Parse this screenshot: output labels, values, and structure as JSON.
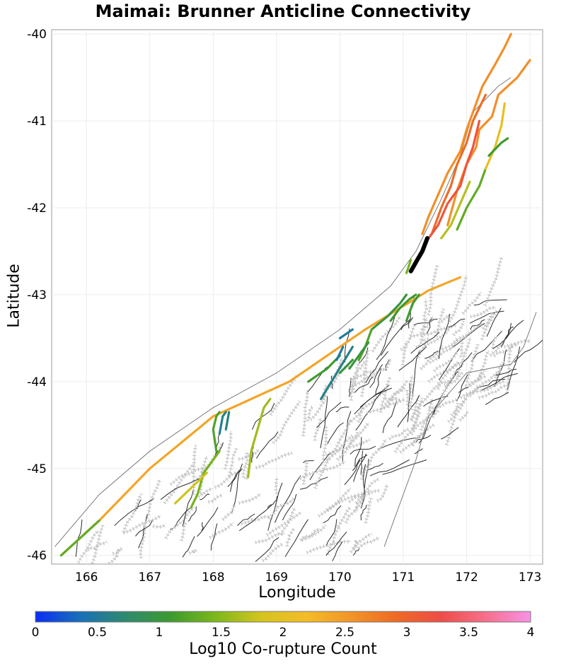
{
  "title": "Maimai: Brunner Anticline Connectivity",
  "x_axis": {
    "label": "Longitude",
    "ticks": [
      "166",
      "167",
      "168",
      "169",
      "170",
      "171",
      "172",
      "173"
    ]
  },
  "y_axis": {
    "label": "Latitude",
    "ticks": [
      "-40",
      "-41",
      "-42",
      "-43",
      "-44",
      "-45",
      "-46"
    ]
  },
  "colorbar": {
    "label": "Log10 Co-rupture Count",
    "ticks": [
      "0",
      "0.5",
      "1",
      "1.5",
      "2",
      "2.5",
      "3",
      "3.5",
      "4"
    ],
    "colors": [
      "#0a2ef5",
      "#1870b8",
      "#2e8a6e",
      "#3d9a2f",
      "#7cb81a",
      "#d4c41f",
      "#f5bc26",
      "#f29528",
      "#ef6a24",
      "#ee4d47",
      "#f76f8a",
      "#f992e9"
    ]
  },
  "chart_data": {
    "type": "map",
    "x_range": [
      165.45,
      173.2
    ],
    "y_range": [
      -46.1,
      -39.95
    ],
    "colormap_range": [
      0,
      4
    ],
    "highlighted_section": {
      "name": "Brunner Anticline",
      "color": "#000000",
      "path": [
        [
          171.12,
          -42.73
        ],
        [
          171.22,
          -42.6
        ],
        [
          171.3,
          -42.5
        ],
        [
          171.38,
          -42.35
        ]
      ]
    },
    "co_rupture_traces": [
      {
        "v": 2.4,
        "path": [
          [
            165.6,
            -46.0
          ],
          [
            166.2,
            -45.6
          ],
          [
            167.0,
            -45.0
          ],
          [
            168.0,
            -44.4
          ],
          [
            169.2,
            -44.0
          ],
          [
            170.4,
            -43.4
          ],
          [
            171.4,
            -42.95
          ],
          [
            171.9,
            -42.8
          ]
        ]
      },
      {
        "v": 1.3,
        "path": [
          [
            165.6,
            -46.0
          ],
          [
            166.2,
            -45.6
          ]
        ]
      },
      {
        "v": 2.6,
        "path": [
          [
            171.7,
            -42.2
          ],
          [
            171.85,
            -41.8
          ],
          [
            172.0,
            -41.5
          ],
          [
            172.15,
            -41.3
          ],
          [
            172.2,
            -41.1
          ],
          [
            172.4,
            -40.95
          ],
          [
            172.5,
            -40.7
          ],
          [
            172.8,
            -40.5
          ],
          [
            173.0,
            -40.3
          ]
        ]
      },
      {
        "v": 2.6,
        "path": [
          [
            171.3,
            -42.3
          ],
          [
            171.4,
            -42.1
          ],
          [
            171.55,
            -41.85
          ],
          [
            171.7,
            -41.6
          ],
          [
            171.9,
            -41.35
          ],
          [
            172.0,
            -41.1
          ],
          [
            172.25,
            -40.6
          ],
          [
            172.45,
            -40.35
          ],
          [
            172.6,
            -40.15
          ],
          [
            172.7,
            -40.0
          ]
        ]
      },
      {
        "v": 2.9,
        "path": [
          [
            171.45,
            -42.3
          ],
          [
            171.6,
            -42.0
          ],
          [
            171.75,
            -41.75
          ],
          [
            171.85,
            -41.5
          ],
          [
            172.0,
            -41.25
          ],
          [
            172.1,
            -41.0
          ],
          [
            172.3,
            -40.7
          ]
        ]
      },
      {
        "v": 3.2,
        "path": [
          [
            171.4,
            -42.35
          ],
          [
            171.55,
            -42.2
          ],
          [
            171.7,
            -41.95
          ],
          [
            171.9,
            -41.75
          ],
          [
            172.0,
            -41.5
          ],
          [
            172.1,
            -41.3
          ],
          [
            172.2,
            -41.0
          ]
        ]
      },
      {
        "v": 1.7,
        "path": [
          [
            171.6,
            -42.35
          ],
          [
            171.75,
            -42.2
          ],
          [
            171.9,
            -41.95
          ],
          [
            172.05,
            -41.7
          ]
        ]
      },
      {
        "v": 1.3,
        "path": [
          [
            171.85,
            -42.25
          ],
          [
            172.0,
            -42.0
          ],
          [
            172.2,
            -41.75
          ],
          [
            172.3,
            -41.55
          ]
        ]
      },
      {
        "v": 2.0,
        "path": [
          [
            172.3,
            -41.55
          ],
          [
            172.45,
            -41.3
          ],
          [
            172.55,
            -41.05
          ],
          [
            172.6,
            -40.8
          ]
        ]
      },
      {
        "v": 1.1,
        "path": [
          [
            172.35,
            -41.4
          ],
          [
            172.55,
            -41.25
          ],
          [
            172.65,
            -41.2
          ]
        ]
      },
      {
        "v": 1.4,
        "path": [
          [
            171.05,
            -42.75
          ],
          [
            171.12,
            -42.6
          ]
        ]
      },
      {
        "v": 1.0,
        "path": [
          [
            170.5,
            -43.4
          ],
          [
            170.75,
            -43.25
          ],
          [
            170.95,
            -43.1
          ],
          [
            171.05,
            -43.0
          ]
        ]
      },
      {
        "v": 1.1,
        "path": [
          [
            171.05,
            -43.3
          ],
          [
            171.15,
            -43.1
          ],
          [
            171.25,
            -43.0
          ]
        ]
      },
      {
        "v": 1.1,
        "path": [
          [
            170.8,
            -43.3
          ],
          [
            170.95,
            -43.15
          ],
          [
            171.1,
            -43.05
          ],
          [
            171.2,
            -43.0
          ]
        ]
      },
      {
        "v": 1.2,
        "path": [
          [
            170.3,
            -43.75
          ],
          [
            170.4,
            -43.6
          ],
          [
            170.5,
            -43.4
          ]
        ]
      },
      {
        "v": 1.0,
        "path": [
          [
            170.0,
            -43.9
          ],
          [
            170.2,
            -43.75
          ]
        ]
      },
      {
        "v": 1.0,
        "path": [
          [
            170.15,
            -43.85
          ],
          [
            170.3,
            -43.7
          ],
          [
            170.45,
            -43.55
          ]
        ]
      },
      {
        "v": 1.1,
        "path": [
          [
            169.5,
            -44.0
          ],
          [
            169.8,
            -43.85
          ],
          [
            170.0,
            -43.7
          ]
        ]
      },
      {
        "v": 0.6,
        "path": [
          [
            169.7,
            -44.2
          ],
          [
            169.95,
            -43.9
          ],
          [
            170.2,
            -43.6
          ]
        ]
      },
      {
        "v": 0.5,
        "path": [
          [
            170.0,
            -43.5
          ],
          [
            170.2,
            -43.4
          ]
        ]
      },
      {
        "v": 0.5,
        "path": [
          [
            169.95,
            -43.75
          ],
          [
            170.05,
            -43.6
          ]
        ]
      },
      {
        "v": 1.6,
        "path": [
          [
            168.55,
            -45.1
          ],
          [
            168.6,
            -44.8
          ],
          [
            168.7,
            -44.55
          ],
          [
            168.8,
            -44.3
          ],
          [
            168.9,
            -44.2
          ]
        ]
      },
      {
        "v": 1.4,
        "path": [
          [
            167.65,
            -45.45
          ],
          [
            167.75,
            -45.3
          ],
          [
            167.85,
            -45.05
          ],
          [
            168.0,
            -44.9
          ],
          [
            168.1,
            -44.8
          ]
        ]
      },
      {
        "v": 1.2,
        "path": [
          [
            168.05,
            -44.8
          ],
          [
            168.0,
            -44.55
          ],
          [
            168.05,
            -44.4
          ],
          [
            168.1,
            -44.35
          ]
        ]
      },
      {
        "v": 0.6,
        "path": [
          [
            168.1,
            -44.6
          ],
          [
            168.15,
            -44.4
          ],
          [
            168.2,
            -44.35
          ]
        ]
      },
      {
        "v": 0.6,
        "path": [
          [
            168.2,
            -44.55
          ],
          [
            168.25,
            -44.35
          ]
        ]
      },
      {
        "v": 1.8,
        "path": [
          [
            167.4,
            -45.4
          ],
          [
            167.9,
            -45.05
          ]
        ]
      }
    ]
  }
}
